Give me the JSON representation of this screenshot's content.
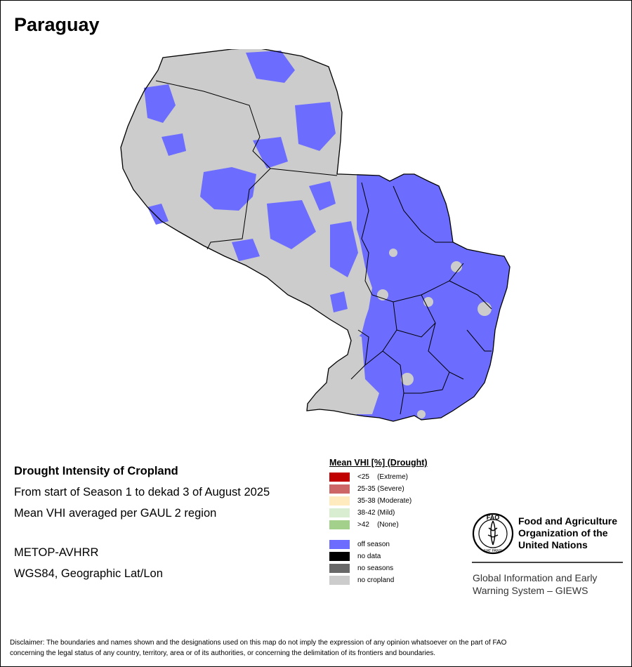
{
  "title": "Paraguay",
  "info": {
    "heading": "Drought Intensity of Cropland",
    "line1": "From start of Season 1 to dekad 3 of August 2025",
    "line2": "Mean VHI averaged per GAUL 2 region",
    "sensor": "METOP-AVHRR",
    "projection": "WGS84, Geographic Lat/Lon"
  },
  "legend": {
    "title": "Mean VHI [%] (Drought)",
    "items": [
      {
        "label": "<25    (Extreme)",
        "color": "#c00000"
      },
      {
        "label": "25-35 (Severe)",
        "color": "#cd6666"
      },
      {
        "label": "35-38 (Moderate)",
        "color": "#ffebbe"
      },
      {
        "label": "38-42 (Mild)",
        "color": "#d9eed0"
      },
      {
        "label": ">42    (None)",
        "color": "#a3d18b"
      }
    ],
    "status": [
      {
        "label": "off season",
        "color": "#6c6cff"
      },
      {
        "label": "no data",
        "color": "#000000"
      },
      {
        "label": "no seasons",
        "color": "#686868"
      },
      {
        "label": "no cropland",
        "color": "#cccccc"
      }
    ]
  },
  "fao": {
    "logo_text": "FAO",
    "logo_motto": "FIAT PANIS",
    "name_line1": "Food and Agriculture",
    "name_line2": "Organization of the",
    "name_line3": "United Nations",
    "giews_line1": "Global Information and Early",
    "giews_line2": "Warning System – GIEWS"
  },
  "disclaimer": {
    "line1": "Disclaimer: The boundaries and names shown and the designations used on this map do not imply the expression of any opinion whatsoever on the part of FAO",
    "line2": "concerning the legal status of any country, territory, area or of its authorities, or concerning the delimitation of its frontiers and boundaries."
  },
  "map_colors": {
    "no_cropland": "#cccccc",
    "off_season": "#6c6cff",
    "boundary": "#000000"
  }
}
